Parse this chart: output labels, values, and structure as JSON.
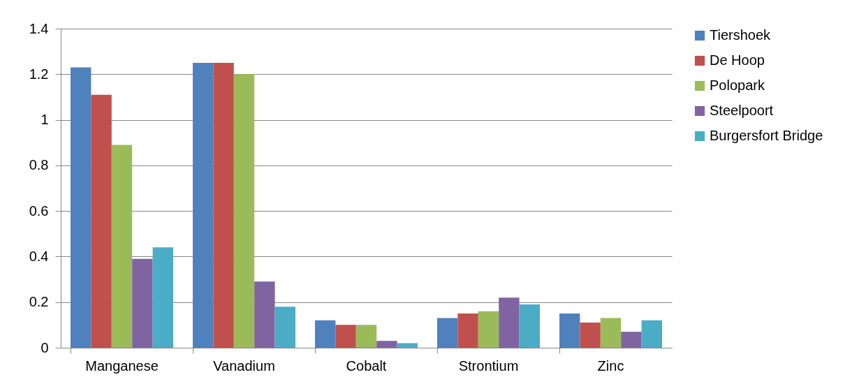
{
  "chart_data": {
    "type": "bar",
    "categories": [
      "Manganese",
      "Vanadium",
      "Cobalt",
      "Strontium",
      "Zinc"
    ],
    "series": [
      {
        "name": "Tiershoek",
        "color": "#4f81bd",
        "values": [
          1.23,
          1.25,
          0.12,
          0.13,
          0.15
        ]
      },
      {
        "name": "De Hoop",
        "color": "#c0504d",
        "values": [
          1.11,
          1.25,
          0.1,
          0.15,
          0.11
        ]
      },
      {
        "name": "Polopark",
        "color": "#9bbb59",
        "values": [
          0.89,
          1.2,
          0.1,
          0.16,
          0.13
        ]
      },
      {
        "name": "Steelpoort",
        "color": "#8064a2",
        "values": [
          0.39,
          0.29,
          0.03,
          0.22,
          0.07
        ]
      },
      {
        "name": "Burgersfort Bridge",
        "color": "#4bacc6",
        "values": [
          0.44,
          0.18,
          0.02,
          0.19,
          0.12
        ]
      }
    ],
    "ylim": [
      0,
      1.4
    ],
    "yticks": [
      0,
      0.2,
      0.4,
      0.6,
      0.8,
      1,
      1.2,
      1.4
    ],
    "grid": "y",
    "legend": "right"
  }
}
